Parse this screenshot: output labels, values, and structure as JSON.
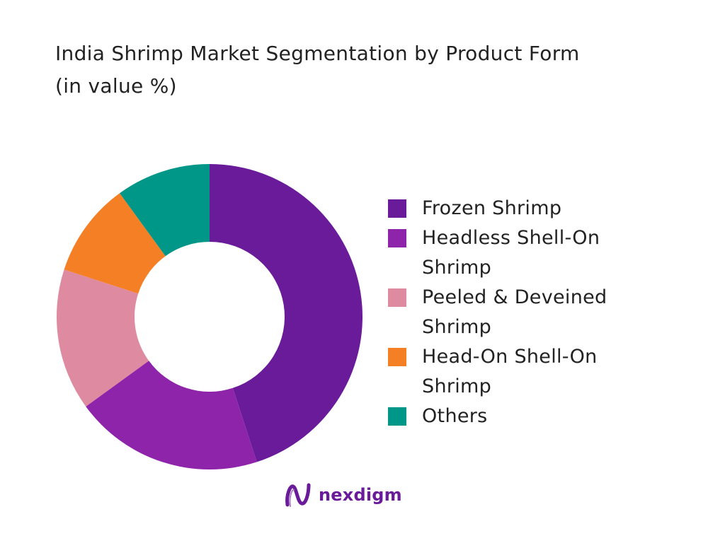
{
  "title": {
    "line1": "India Shrimp Market Segmentation by Product Form",
    "line2": "(in value %)"
  },
  "chart_data": {
    "type": "pie",
    "subtype": "donut",
    "categories": [
      "Frozen Shrimp",
      "Headless Shell-On Shrimp",
      "Peeled & Deveined Shrimp",
      "Head-On Shell-On Shrimp",
      "Others"
    ],
    "values": [
      45,
      20,
      15,
      10,
      10
    ],
    "colors": [
      "#6a1b9a",
      "#8e24aa",
      "#de8aa0",
      "#f57f25",
      "#009688"
    ],
    "start_angle": "12 o'clock",
    "direction": "clockwise",
    "legend_position": "right"
  },
  "legend": {
    "items": [
      {
        "label_line1": "Frozen Shrimp",
        "label_line2": ""
      },
      {
        "label_line1": "Headless Shell-On",
        "label_line2": "Shrimp"
      },
      {
        "label_line1": "Peeled & Deveined",
        "label_line2": "Shrimp"
      },
      {
        "label_line1": "Head-On Shell-On",
        "label_line2": "Shrimp"
      },
      {
        "label_line1": "Others",
        "label_line2": ""
      }
    ]
  },
  "brand": {
    "name": "nexdigm",
    "icon": "nexdigm-logo-icon",
    "color": "#6a1b9a"
  }
}
